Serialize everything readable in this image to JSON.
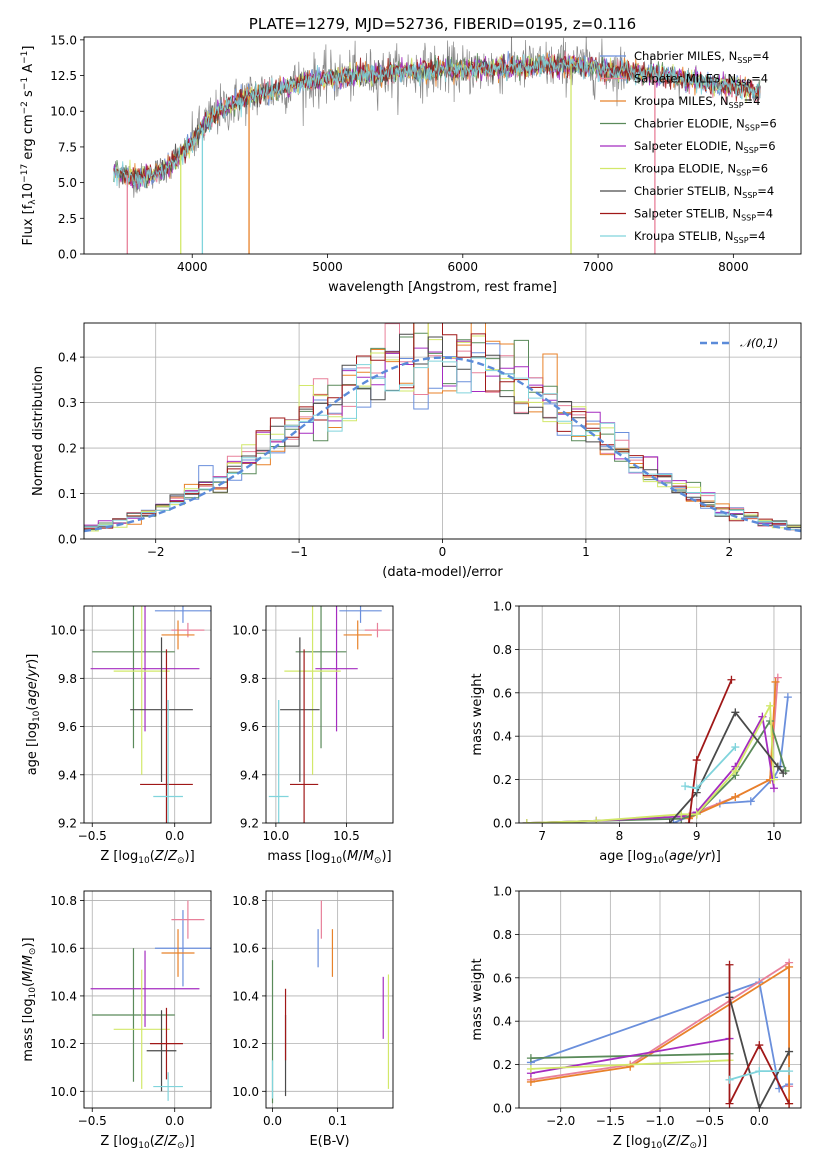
{
  "colors": {
    "Chabrier MILES": "#6a8fdc",
    "Salpeter MILES": "#e8809a",
    "Kroupa MILES": "#e8822a",
    "Chabrier ELODIE": "#5a8a5a",
    "Salpeter ELODIE": "#a52cc0",
    "Kroupa ELODIE": "#d2e86a",
    "Chabrier STELIB": "#4a4a4a",
    "Salpeter STELIB": "#a01818",
    "Kroupa STELIB": "#80d4dc",
    "normal": "#5b8bd9",
    "observed": "#888888"
  },
  "chart_data": [
    {
      "id": "spectrum",
      "type": "line",
      "title": "PLATE=1279, MJD=52736, FIBERID=0195, z=0.116",
      "xlabel": "wavelength [Angstrom, rest frame]",
      "ylabel": "Flux [f_λ10^-17 erg cm^-2 s^-1 A^-1]",
      "xlim": [
        3200,
        8500
      ],
      "ylim": [
        0,
        15.2
      ],
      "xticks": [
        "4000",
        "5000",
        "6000",
        "7000",
        "8000"
      ],
      "yticks": [
        "0.0",
        "2.5",
        "5.0",
        "7.5",
        "10.0",
        "12.5",
        "15.0"
      ],
      "legend": [
        "Chabrier MILES, N_SSP=4",
        "Salpeter MILES, N_SSP=4",
        "Kroupa MILES, N_SSP=4",
        "Chabrier ELODIE, N_SSP=6",
        "Salpeter ELODIE, N_SSP=6",
        "Kroupa ELODIE, N_SSP=6",
        "Chabrier STELIB, N_SSP=4",
        "Salpeter STELIB, N_SSP=4",
        "Kroupa STELIB, N_SSP=4"
      ],
      "legend_loc": "right",
      "model_continuum": {
        "x": [
          3420,
          3500,
          3600,
          3700,
          3800,
          3900,
          4000,
          4100,
          4200,
          4300,
          4400,
          4600,
          4800,
          5000,
          5200,
          5400,
          5600,
          5800,
          6000,
          6200,
          6400,
          6600,
          6800,
          7000,
          7200,
          7400,
          7600,
          7800,
          8000,
          8200
        ],
        "y": [
          5.8,
          5.6,
          5.2,
          5.6,
          6.0,
          6.8,
          7.8,
          9.2,
          10.0,
          10.5,
          11.0,
          11.5,
          12.0,
          12.3,
          12.5,
          12.6,
          12.8,
          12.9,
          12.9,
          13.0,
          13.1,
          13.2,
          13.3,
          13.0,
          12.8,
          12.6,
          12.3,
          12.0,
          11.7,
          11.4
        ]
      },
      "observed_scatter_amplitude": 1.6,
      "dropouts": [
        {
          "x": 3520,
          "color": "Salpeter MILES"
        },
        {
          "x": 3915,
          "color": "Kroupa ELODIE"
        },
        {
          "x": 4075,
          "color": "Kroupa STELIB"
        },
        {
          "x": 4420,
          "color": "Kroupa MILES"
        },
        {
          "x": 6800,
          "color": "Kroupa ELODIE"
        },
        {
          "x": 7420,
          "color": "Salpeter MILES"
        }
      ]
    },
    {
      "id": "residuals",
      "type": "histogram",
      "xlabel": "(data-model)/error",
      "ylabel": "Normed distribution",
      "xlim": [
        -2.5,
        2.5
      ],
      "ylim": [
        0,
        0.475
      ],
      "xticks": [
        "−2",
        "−1",
        "0",
        "1",
        "2"
      ],
      "yticks": [
        "0.0",
        "0.1",
        "0.2",
        "0.3",
        "0.4"
      ],
      "legend": [
        "𝒩(0,1)"
      ],
      "legend_loc": "top-right",
      "grid": true,
      "bin_width": 0.1
    },
    {
      "id": "age-vs-Z",
      "type": "scatter",
      "xlabel": "Z [log10(Z/Z⊙)]",
      "ylabel": "age [log10(age/yr)]",
      "xlim": [
        -0.55,
        0.22
      ],
      "ylim": [
        9.2,
        10.1
      ],
      "xticks": [
        "−0.5",
        "0.0"
      ],
      "yticks": [
        "9.2",
        "9.4",
        "9.6",
        "9.8",
        "10.0"
      ],
      "grid": true,
      "crosses": [
        {
          "series": "Chabrier MILES",
          "x": 0.05,
          "y": 10.08,
          "xerr": 0.17,
          "yerr": 0.05
        },
        {
          "series": "Salpeter MILES",
          "x": 0.08,
          "y": 10.0,
          "xerr": 0.1,
          "yerr": 0.03
        },
        {
          "series": "Kroupa MILES",
          "x": 0.02,
          "y": 9.98,
          "xerr": 0.1,
          "yerr": 0.06
        },
        {
          "series": "Chabrier ELODIE",
          "x": -0.25,
          "y": 9.91,
          "xerr": 0.25,
          "yerr": 0.4
        },
        {
          "series": "Salpeter ELODIE",
          "x": -0.18,
          "y": 9.84,
          "xerr": 0.33,
          "yerr": 0.26
        },
        {
          "series": "Kroupa ELODIE",
          "x": -0.2,
          "y": 9.83,
          "xerr": 0.17,
          "yerr": 0.43
        },
        {
          "series": "Chabrier STELIB",
          "x": -0.08,
          "y": 9.67,
          "xerr": 0.19,
          "yerr": 0.3
        },
        {
          "series": "Salpeter STELIB",
          "x": -0.05,
          "y": 9.36,
          "xerr": 0.16,
          "yerr": 0.56
        },
        {
          "series": "Kroupa STELIB",
          "x": -0.04,
          "y": 9.31,
          "xerr": 0.09,
          "yerr": 0.4
        }
      ]
    },
    {
      "id": "age-vs-mass",
      "type": "scatter",
      "xlabel": "mass [log10(M/M⊙)]",
      "xlim": [
        9.93,
        10.83
      ],
      "ylim": [
        9.2,
        10.1
      ],
      "xticks": [
        "10.0",
        "10.5"
      ],
      "yticks": [
        "9.2",
        "9.4",
        "9.6",
        "9.8",
        "10.0"
      ],
      "grid": true,
      "crosses": [
        {
          "series": "Chabrier MILES",
          "x": 10.6,
          "y": 10.08,
          "xerr": 0.15,
          "yerr": 0.05
        },
        {
          "series": "Salpeter MILES",
          "x": 10.72,
          "y": 10.0,
          "xerr": 0.09,
          "yerr": 0.03
        },
        {
          "series": "Kroupa MILES",
          "x": 10.58,
          "y": 9.98,
          "xerr": 0.1,
          "yerr": 0.06
        },
        {
          "series": "Chabrier ELODIE",
          "x": 10.32,
          "y": 9.91,
          "xerr": 0.18,
          "yerr": 0.4
        },
        {
          "series": "Salpeter ELODIE",
          "x": 10.43,
          "y": 9.84,
          "xerr": 0.15,
          "yerr": 0.26
        },
        {
          "series": "Kroupa ELODIE",
          "x": 10.26,
          "y": 9.83,
          "xerr": 0.2,
          "yerr": 0.43
        },
        {
          "series": "Chabrier STELIB",
          "x": 10.17,
          "y": 9.67,
          "xerr": 0.14,
          "yerr": 0.3
        },
        {
          "series": "Salpeter STELIB",
          "x": 10.2,
          "y": 9.36,
          "xerr": 0.1,
          "yerr": 0.56
        },
        {
          "series": "Kroupa STELIB",
          "x": 10.02,
          "y": 9.31,
          "xerr": 0.07,
          "yerr": 0.4
        }
      ]
    },
    {
      "id": "mass-weight-vs-age",
      "type": "line",
      "xlabel": "age [log10(age/yr)]",
      "ylabel": "mass weight",
      "xlim": [
        6.7,
        10.35
      ],
      "ylim": [
        0,
        1
      ],
      "xticks": [
        "7",
        "8",
        "9",
        "10"
      ],
      "yticks": [
        "0.0",
        "0.2",
        "0.4",
        "0.6",
        "0.8",
        "1.0"
      ],
      "grid": true,
      "series": [
        {
          "name": "Chabrier MILES",
          "x": [
            8.7,
            9.3,
            9.7,
            10.0,
            10.08,
            10.18
          ],
          "y": [
            0.0,
            0.09,
            0.1,
            0.21,
            0.26,
            0.58
          ]
        },
        {
          "name": "Salpeter MILES",
          "x": [
            8.9,
            9.0,
            9.5,
            9.95,
            10.05
          ],
          "y": [
            0.03,
            0.05,
            0.12,
            0.2,
            0.67
          ]
        },
        {
          "name": "Kroupa MILES",
          "x": [
            8.9,
            9.0,
            9.5,
            9.95,
            10.02
          ],
          "y": [
            0.02,
            0.04,
            0.12,
            0.2,
            0.65
          ]
        },
        {
          "name": "Chabrier ELODIE",
          "x": [
            6.8,
            7.7,
            8.8,
            9.0,
            9.5,
            9.95,
            10.15
          ],
          "y": [
            0.0,
            0.01,
            0.02,
            0.04,
            0.22,
            0.47,
            0.24
          ]
        },
        {
          "name": "Salpeter ELODIE",
          "x": [
            6.8,
            7.7,
            8.8,
            9.0,
            9.5,
            9.85,
            10.0
          ],
          "y": [
            0.0,
            0.01,
            0.03,
            0.05,
            0.26,
            0.49,
            0.16
          ]
        },
        {
          "name": "Kroupa ELODIE",
          "x": [
            6.8,
            7.7,
            8.8,
            9.0,
            9.5,
            9.95,
            10.0
          ],
          "y": [
            0.0,
            0.01,
            0.04,
            0.04,
            0.24,
            0.54,
            0.2
          ]
        },
        {
          "name": "Chabrier STELIB",
          "x": [
            8.65,
            9.0,
            9.5,
            10.05,
            10.12
          ],
          "y": [
            0.0,
            0.14,
            0.51,
            0.26,
            0.23
          ]
        },
        {
          "name": "Salpeter STELIB",
          "x": [
            8.9,
            9.0,
            9.45
          ],
          "y": [
            0.0,
            0.29,
            0.66
          ]
        },
        {
          "name": "Kroupa STELIB",
          "x": [
            8.85,
            9.0,
            9.5
          ],
          "y": [
            0.17,
            0.16,
            0.35
          ]
        }
      ]
    },
    {
      "id": "mass-vs-Z",
      "type": "scatter",
      "xlabel": "Z [log10(Z/Z⊙)]",
      "ylabel": "mass [log10(M/M⊙)]",
      "xlim": [
        -0.55,
        0.22
      ],
      "ylim": [
        9.93,
        10.84
      ],
      "xticks": [
        "−0.5",
        "0.0"
      ],
      "yticks": [
        "10.0",
        "10.2",
        "10.4",
        "10.6",
        "10.8"
      ],
      "grid": true,
      "crosses": [
        {
          "series": "Chabrier MILES",
          "x": 0.05,
          "y": 10.6,
          "xerr": 0.17,
          "yerr": 0.16
        },
        {
          "series": "Salpeter MILES",
          "x": 0.08,
          "y": 10.72,
          "xerr": 0.1,
          "yerr": 0.08
        },
        {
          "series": "Kroupa MILES",
          "x": 0.02,
          "y": 10.58,
          "xerr": 0.1,
          "yerr": 0.1
        },
        {
          "series": "Chabrier ELODIE",
          "x": -0.25,
          "y": 10.32,
          "xerr": 0.25,
          "yerr": 0.28
        },
        {
          "series": "Salpeter ELODIE",
          "x": -0.18,
          "y": 10.43,
          "xerr": 0.33,
          "yerr": 0.16
        },
        {
          "series": "Kroupa ELODIE",
          "x": -0.2,
          "y": 10.26,
          "xerr": 0.17,
          "yerr": 0.25
        },
        {
          "series": "Chabrier STELIB",
          "x": -0.08,
          "y": 10.17,
          "xerr": 0.09,
          "yerr": 0.17
        },
        {
          "series": "Salpeter STELIB",
          "x": -0.05,
          "y": 10.2,
          "xerr": 0.1,
          "yerr": 0.15
        },
        {
          "series": "Kroupa STELIB",
          "x": -0.04,
          "y": 10.02,
          "xerr": 0.09,
          "yerr": 0.06
        }
      ]
    },
    {
      "id": "mass-vs-ebv",
      "type": "scatter",
      "xlabel": "E(B-V)",
      "xlim": [
        -0.01,
        0.185
      ],
      "ylim": [
        9.93,
        10.84
      ],
      "xticks": [
        "0.0",
        "0.1"
      ],
      "yticks": [
        "10.0",
        "10.2",
        "10.4",
        "10.6",
        "10.8"
      ],
      "grid": true,
      "crosses": [
        {
          "series": "Chabrier MILES",
          "x": 0.07,
          "y": 10.6,
          "xerr": 0,
          "yerr": 0.08
        },
        {
          "series": "Salpeter MILES",
          "x": 0.075,
          "y": 10.72,
          "xerr": 0,
          "yerr": 0.08
        },
        {
          "series": "Kroupa MILES",
          "x": 0.092,
          "y": 10.58,
          "xerr": 0,
          "yerr": 0.1
        },
        {
          "series": "Chabrier ELODIE",
          "x": 0.0,
          "y": 10.25,
          "xerr": 0,
          "yerr": 0.3
        },
        {
          "series": "Salpeter ELODIE",
          "x": 0.17,
          "y": 10.35,
          "xerr": 0,
          "yerr": 0.13
        },
        {
          "series": "Kroupa ELODIE",
          "x": 0.178,
          "y": 10.25,
          "xerr": 0,
          "yerr": 0.24
        },
        {
          "series": "Chabrier STELIB",
          "x": 0.02,
          "y": 10.15,
          "xerr": 0,
          "yerr": 0.17
        },
        {
          "series": "Salpeter STELIB",
          "x": 0.02,
          "y": 10.28,
          "xerr": 0,
          "yerr": 0.15
        },
        {
          "series": "Kroupa STELIB",
          "x": 0.0,
          "y": 10.05,
          "xerr": 0,
          "yerr": 0.08
        }
      ]
    },
    {
      "id": "mass-weight-vs-Z",
      "type": "line",
      "xlabel": "Z [log10(Z/Z⊙)]",
      "ylabel": "mass weight",
      "xlim": [
        -2.42,
        0.42
      ],
      "ylim": [
        0,
        1
      ],
      "xticks": [
        "−2.0",
        "−1.5",
        "−1.0",
        "−0.5",
        "0.0"
      ],
      "yticks": [
        "0.0",
        "0.2",
        "0.4",
        "0.6",
        "0.8",
        "1.0"
      ],
      "grid": true,
      "series": [
        {
          "name": "Chabrier MILES",
          "x": [
            -2.3,
            0.0,
            0.2,
            0.3
          ],
          "y": [
            0.21,
            0.58,
            0.09,
            0.11
          ]
        },
        {
          "name": "Salpeter MILES",
          "x": [
            -2.3,
            -1.3,
            0.3,
            0.3
          ],
          "y": [
            0.13,
            0.2,
            0.67,
            0.1
          ]
        },
        {
          "name": "Kroupa MILES",
          "x": [
            -2.3,
            -1.3,
            0.3,
            0.3
          ],
          "y": [
            0.12,
            0.19,
            0.65,
            0.02
          ]
        },
        {
          "name": "Chabrier ELODIE",
          "x": [
            -2.3,
            -0.3
          ],
          "y": [
            0.23,
            0.25
          ]
        },
        {
          "name": "Salpeter ELODIE",
          "x": [
            -2.3,
            -0.3
          ],
          "y": [
            0.16,
            0.32
          ]
        },
        {
          "name": "Kroupa ELODIE",
          "x": [
            -2.3,
            -0.3
          ],
          "y": [
            0.18,
            0.22
          ]
        },
        {
          "name": "Chabrier STELIB",
          "x": [
            -0.3,
            0.0,
            0.3
          ],
          "y": [
            0.51,
            0.0,
            0.26
          ]
        },
        {
          "name": "Salpeter STELIB",
          "x": [
            -0.3,
            -0.3,
            0.0,
            0.3
          ],
          "y": [
            0.66,
            0.02,
            0.29,
            0.02
          ]
        },
        {
          "name": "Kroupa STELIB",
          "x": [
            -0.3,
            0.0,
            0.3
          ],
          "y": [
            0.13,
            0.17,
            0.17
          ]
        }
      ]
    }
  ]
}
